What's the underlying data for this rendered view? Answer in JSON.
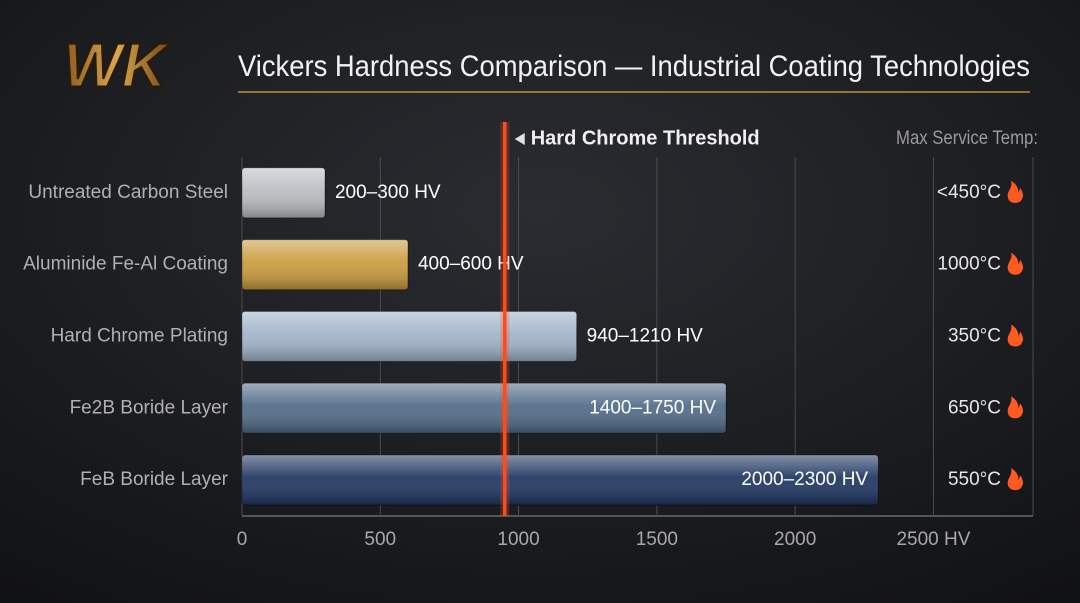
{
  "logo": "WK",
  "chart_data": {
    "type": "bar",
    "orientation": "horizontal",
    "title": "Vickers Hardness Comparison — Industrial Coating Technologies",
    "categories": [
      "Untreated Carbon Steel",
      "Aluminide Fe-Al Coating",
      "Hard Chrome Plating",
      "Fe2B Boride Layer",
      "FeB Boride Layer"
    ],
    "values": [
      300,
      600,
      1210,
      1750,
      2300
    ],
    "value_labels": [
      "200–300 HV",
      "400–600 HV",
      "940–1210 HV",
      "1400–1750 HV",
      "2000–2300 HV"
    ],
    "colors": [
      "#b9bcc0",
      "#c99a3a",
      "#9fb3c8",
      "#4f6a86",
      "#1d3460"
    ],
    "xlim": [
      0,
      2860
    ],
    "xticks": [
      0,
      500,
      1000,
      1500,
      2000,
      {
        "value": 2500,
        "label": "2500 HV"
      }
    ],
    "grid": true,
    "threshold": {
      "value": 950,
      "label": "Hard Chrome Threshold",
      "color": "#ff4a1a"
    },
    "temp_header": "Max Service Temp:",
    "temps": [
      "<450°C",
      "1000°C",
      "350°C",
      "650°C",
      "550°C"
    ]
  }
}
